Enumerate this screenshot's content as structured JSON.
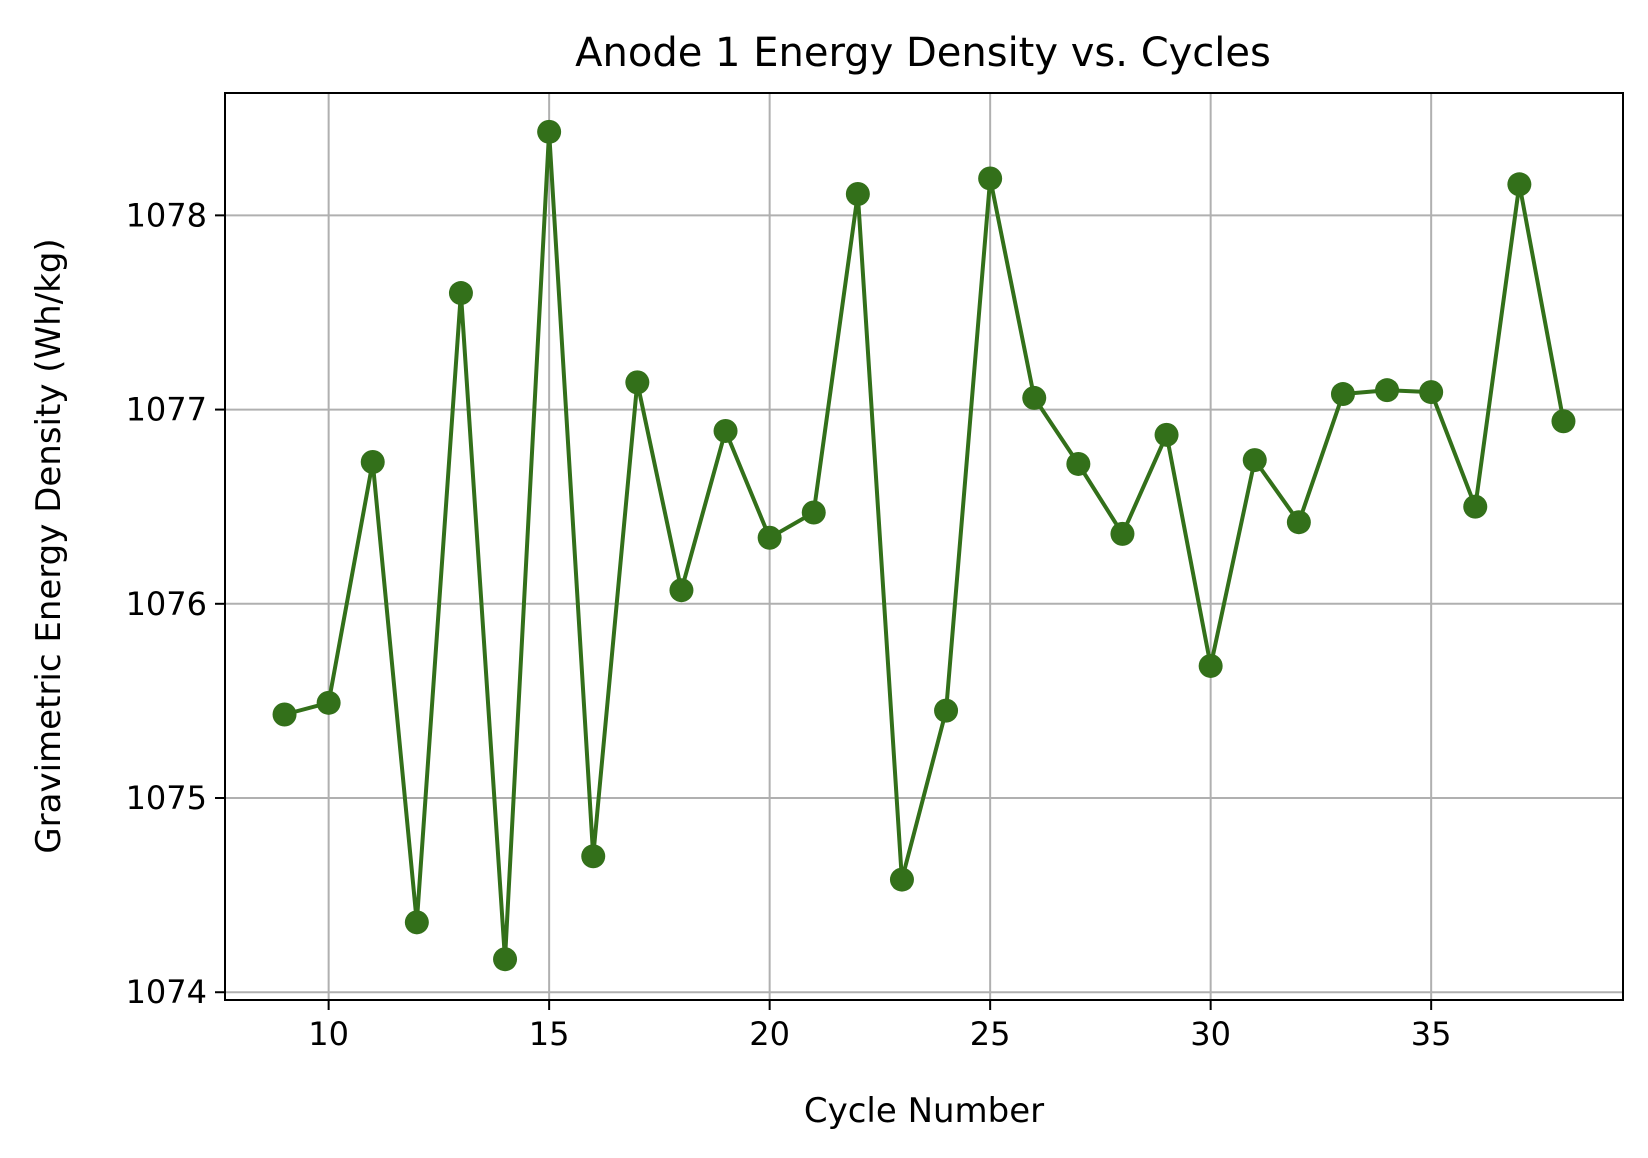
{
  "chart_data": {
    "type": "line",
    "title": "Anode 1 Energy Density vs. Cycles",
    "xlabel": "Cycle Number",
    "ylabel": "Gravimetric Energy Density (Wh/kg)",
    "xlim": [
      7.65,
      39.35
    ],
    "ylim": [
      1073.96,
      1078.63
    ],
    "xticks": [
      10,
      15,
      20,
      25,
      30,
      35
    ],
    "yticks": [
      1074,
      1075,
      1076,
      1077,
      1078
    ],
    "grid": true,
    "color": "#33701a",
    "marker": "circle",
    "series": [
      {
        "x": [
          9,
          10,
          11,
          12,
          13,
          14,
          15,
          16,
          17,
          18,
          19,
          20,
          21,
          22,
          23,
          24,
          25,
          26,
          27,
          28,
          29,
          30,
          31,
          32,
          33,
          34,
          35,
          36,
          37,
          38
        ],
        "values": [
          1075.43,
          1075.49,
          1076.73,
          1074.36,
          1077.6,
          1074.17,
          1078.43,
          1074.7,
          1077.14,
          1076.07,
          1076.89,
          1076.34,
          1076.47,
          1078.11,
          1074.58,
          1075.45,
          1078.19,
          1077.06,
          1076.72,
          1076.36,
          1076.87,
          1075.68,
          1076.74,
          1076.42,
          1077.08,
          1077.1,
          1077.09,
          1076.5,
          1078.16,
          1076.94
        ]
      }
    ]
  }
}
